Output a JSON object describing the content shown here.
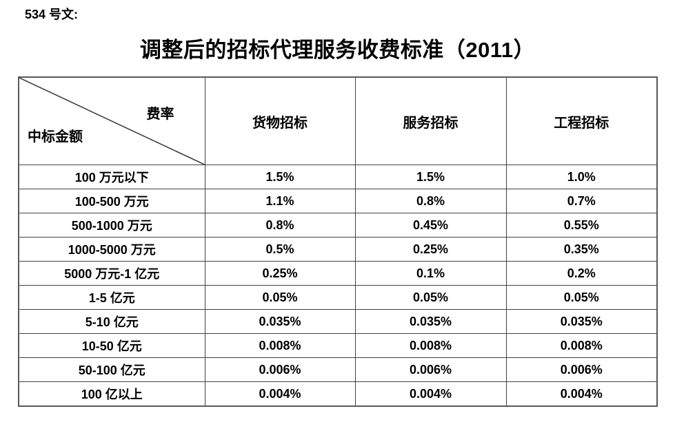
{
  "doc_label": "534 号文:",
  "title": "调整后的招标代理服务收费标准（2011）",
  "table": {
    "corner": {
      "top_right": "费率",
      "bottom_left": "中标金额"
    },
    "columns": [
      "货物招标",
      "服务招标",
      "工程招标"
    ],
    "rows": [
      {
        "label": "100 万元以下",
        "values": [
          "1.5%",
          "1.5%",
          "1.0%"
        ]
      },
      {
        "label": "100-500 万元",
        "values": [
          "1.1%",
          "0.8%",
          "0.7%"
        ]
      },
      {
        "label": "500-1000 万元",
        "values": [
          "0.8%",
          "0.45%",
          "0.55%"
        ]
      },
      {
        "label": "1000-5000 万元",
        "values": [
          "0.5%",
          "0.25%",
          "0.35%"
        ]
      },
      {
        "label": "5000 万元-1 亿元",
        "values": [
          "0.25%",
          "0.1%",
          "0.2%"
        ]
      },
      {
        "label": "1-5 亿元",
        "values": [
          "0.05%",
          "0.05%",
          "0.05%"
        ]
      },
      {
        "label": "5-10 亿元",
        "values": [
          "0.035%",
          "0.035%",
          "0.035%"
        ]
      },
      {
        "label": "10-50 亿元",
        "values": [
          "0.008%",
          "0.008%",
          "0.008%"
        ]
      },
      {
        "label": "50-100 亿元",
        "values": [
          "0.006%",
          "0.006%",
          "0.006%"
        ]
      },
      {
        "label": "100 亿以上",
        "values": [
          "0.004%",
          "0.004%",
          "0.004%"
        ]
      }
    ]
  },
  "colors": {
    "background": "#ffffff",
    "text": "#000000",
    "border_inner": "#404040",
    "border_outer": "#595959"
  }
}
